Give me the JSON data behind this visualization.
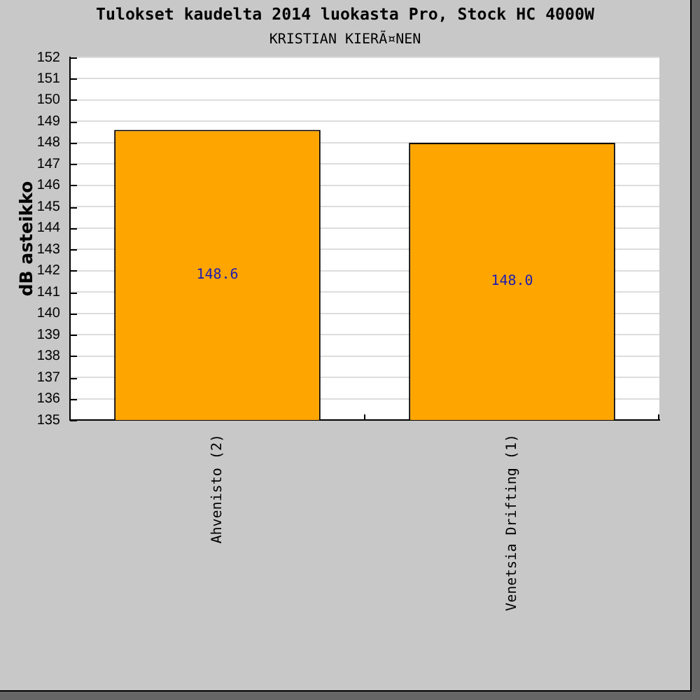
{
  "chart_data": {
    "type": "bar",
    "title": "Tulokset kaudelta 2014 luokasta Pro, Stock HC 4000W",
    "subtitle": "KRISTIAN KIERÃ¤NEN",
    "ylabel": "dB asteikko",
    "categories": [
      "Ahvenisto (2)",
      "Venetsia Drifting (1)"
    ],
    "values": [
      148.6,
      148.0
    ],
    "value_labels": [
      "148.6",
      "148.0"
    ],
    "color": "#ffa500",
    "ylim": [
      135,
      152
    ],
    "yticks": [
      135,
      136,
      137,
      138,
      139,
      140,
      141,
      142,
      143,
      144,
      145,
      146,
      147,
      148,
      149,
      150,
      151,
      152
    ],
    "grid": "y"
  }
}
